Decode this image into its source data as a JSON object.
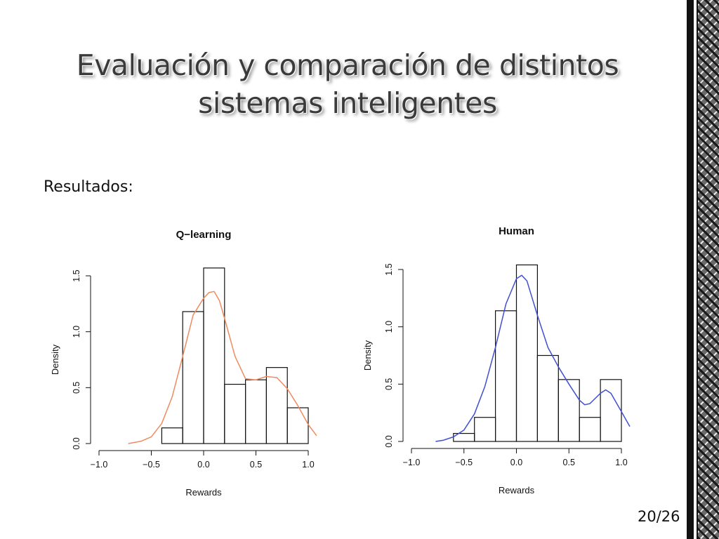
{
  "slide": {
    "title": "Evaluación y comparación de distintos sistemas inteligentes",
    "section_label": "Resultados:",
    "page_number": "20/26"
  },
  "chart_data": [
    {
      "type": "bar",
      "title": "Q−learning",
      "xlabel": "Rewards",
      "ylabel": "Density",
      "xlim": [
        -1.0,
        1.0
      ],
      "ylim": [
        0,
        1.5
      ],
      "x_ticks": [
        "−1.0",
        "−0.5",
        "0.0",
        "0.5",
        "1.0"
      ],
      "y_ticks": [
        "0.0",
        "0.5",
        "1.0",
        "1.5"
      ],
      "bins": [
        {
          "from": -0.4,
          "to": -0.2,
          "density": 0.14
        },
        {
          "from": -0.2,
          "to": 0.0,
          "density": 1.18
        },
        {
          "from": 0.0,
          "to": 0.2,
          "density": 1.57
        },
        {
          "from": 0.2,
          "to": 0.4,
          "density": 0.53
        },
        {
          "from": 0.4,
          "to": 0.6,
          "density": 0.57
        },
        {
          "from": 0.6,
          "to": 0.8,
          "density": 0.68
        },
        {
          "from": 0.8,
          "to": 1.0,
          "density": 0.32
        }
      ],
      "density_curve": {
        "color": "#f08a60",
        "x": [
          -0.72,
          -0.6,
          -0.5,
          -0.4,
          -0.3,
          -0.2,
          -0.1,
          0.0,
          0.05,
          0.1,
          0.15,
          0.2,
          0.3,
          0.4,
          0.5,
          0.6,
          0.7,
          0.8,
          0.9,
          1.0,
          1.08
        ],
        "y": [
          0.0,
          0.02,
          0.06,
          0.18,
          0.42,
          0.78,
          1.15,
          1.3,
          1.35,
          1.36,
          1.28,
          1.12,
          0.78,
          0.58,
          0.57,
          0.6,
          0.59,
          0.49,
          0.34,
          0.17,
          0.07
        ]
      }
    },
    {
      "type": "bar",
      "title": "Human",
      "xlabel": "Rewards",
      "ylabel": "Density",
      "xlim": [
        -1.0,
        1.0
      ],
      "ylim": [
        0,
        1.5
      ],
      "x_ticks": [
        "−1.0",
        "−0.5",
        "0.0",
        "0.5",
        "1.0"
      ],
      "y_ticks": [
        "0.0",
        "0.5",
        "1.0",
        "1.5"
      ],
      "bins": [
        {
          "from": -0.6,
          "to": -0.4,
          "density": 0.07
        },
        {
          "from": -0.4,
          "to": -0.2,
          "density": 0.21
        },
        {
          "from": -0.2,
          "to": 0.0,
          "density": 1.14
        },
        {
          "from": 0.0,
          "to": 0.2,
          "density": 1.54
        },
        {
          "from": 0.2,
          "to": 0.4,
          "density": 0.75
        },
        {
          "from": 0.4,
          "to": 0.6,
          "density": 0.54
        },
        {
          "from": 0.6,
          "to": 0.8,
          "density": 0.21
        },
        {
          "from": 0.8,
          "to": 1.0,
          "density": 0.54
        }
      ],
      "density_curve": {
        "color": "#3f4fd0",
        "x": [
          -0.77,
          -0.7,
          -0.6,
          -0.5,
          -0.4,
          -0.3,
          -0.2,
          -0.1,
          0.0,
          0.05,
          0.1,
          0.2,
          0.3,
          0.4,
          0.5,
          0.6,
          0.65,
          0.7,
          0.8,
          0.85,
          0.9,
          1.0,
          1.08
        ],
        "y": [
          0.0,
          0.01,
          0.04,
          0.1,
          0.24,
          0.48,
          0.82,
          1.2,
          1.42,
          1.45,
          1.4,
          1.1,
          0.82,
          0.65,
          0.5,
          0.36,
          0.32,
          0.33,
          0.42,
          0.45,
          0.42,
          0.26,
          0.13
        ]
      }
    }
  ]
}
